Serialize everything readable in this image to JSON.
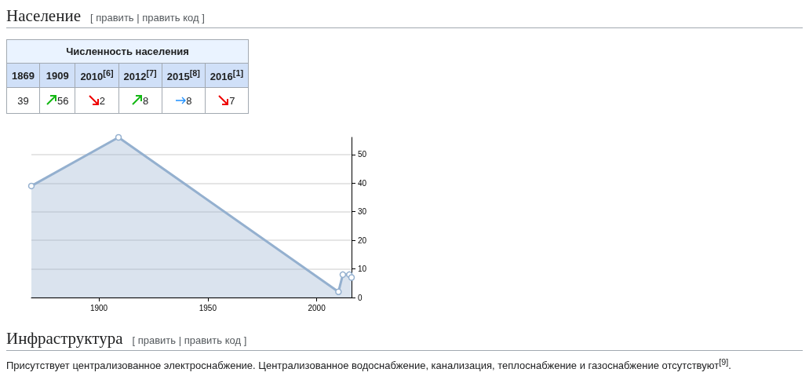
{
  "chart_data": [
    {
      "type": "other",
      "title": "Численность населения",
      "categories": [
        "1869",
        "1909",
        "2010$^{[6]}$",
        "2012$^{[7]}$",
        "2015$^{[8]}$",
        "2016$^{[1]}$"
      ],
      "values": [
        39,
        56,
        2,
        8,
        8,
        7
      ],
      "data_labels": true,
      "annotations": [
        "Население",
        "[ править | править код ]"
      ]
    },
    {
      "type": "area",
      "x": [
        1869,
        1909,
        2010,
        2012,
        2015,
        2016
      ],
      "values": [
        39,
        56,
        2,
        8,
        8,
        7
      ],
      "color": "#94b0cf",
      "xlim": [
        1869,
        2016
      ],
      "xticks": [
        1900,
        1950,
        2000
      ],
      "ylim": [
        0,
        56
      ],
      "yticks": [
        0,
        10,
        20,
        30,
        40,
        50
      ],
      "grid": "y",
      "marker": "circle",
      "annotations": [
        "Инфраструктура",
        "[ править | править код ]",
        "Присутствует централизованное электроснабжение. Централизованное водоснабжение, канализация, теплоснабжение и газоснабжение отсутствуют$^{[9]}$."
      ]
    }
  ]
}
